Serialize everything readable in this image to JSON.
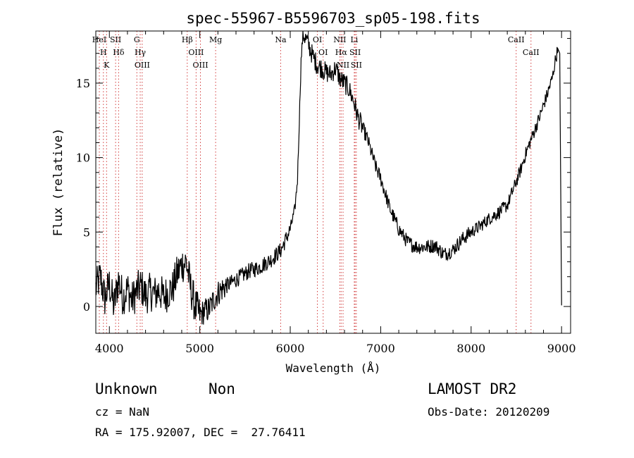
{
  "chart_data": {
    "type": "line",
    "title": "spec-55967-B5596703_sp05-198.fits",
    "xlabel": "Wavelength (Å)",
    "ylabel": "Flux (relative)",
    "xlim": [
      3850,
      9100
    ],
    "ylim": [
      -1.8,
      18.5
    ],
    "xticks": [
      4000,
      5000,
      6000,
      7000,
      8000,
      9000
    ],
    "yticks": [
      0,
      5,
      10,
      15
    ],
    "grid": false,
    "series": [
      {
        "x": [
          3850,
          3900,
          3950,
          4000,
          4050,
          4100,
          4150,
          4200,
          4250,
          4300,
          4350,
          4400,
          4450,
          4500,
          4550,
          4600,
          4650,
          4700,
          4750,
          4800,
          4850,
          4900,
          4950,
          5000,
          5050,
          5100,
          5150,
          5200,
          5250,
          5300,
          5350,
          5400,
          5450,
          5500,
          5550,
          5600,
          5650,
          5700,
          5750,
          5800,
          5850,
          5900,
          5950,
          6000,
          6050,
          6080,
          6100,
          6120,
          6140,
          6170,
          6200,
          6250,
          6300,
          6350,
          6400,
          6450,
          6500,
          6550,
          6600,
          6650,
          6700,
          6750,
          6800,
          6850,
          6900,
          6950,
          7000,
          7050,
          7100,
          7200,
          7300,
          7400,
          7500,
          7600,
          7700,
          7800,
          7900,
          8000,
          8100,
          8200,
          8300,
          8400,
          8500,
          8550,
          8600,
          8650,
          8700,
          8750,
          8800,
          8850,
          8900,
          8930,
          8960,
          8980,
          9000
        ],
        "y": [
          1.2,
          2.0,
          0.5,
          1.5,
          0.0,
          1.8,
          0.6,
          1.2,
          0.4,
          1.0,
          1.4,
          0.7,
          1.0,
          0.8,
          1.1,
          0.6,
          1.0,
          1.2,
          2.2,
          2.8,
          3.0,
          1.2,
          0.0,
          -0.6,
          -0.3,
          -0.2,
          0.4,
          0.9,
          1.2,
          1.4,
          1.6,
          1.8,
          2.0,
          2.2,
          2.4,
          2.5,
          2.6,
          2.8,
          3.0,
          3.2,
          3.5,
          3.8,
          4.5,
          5.2,
          6.5,
          8.5,
          12.5,
          16.5,
          18.3,
          18.0,
          17.6,
          16.8,
          16.2,
          16.0,
          15.7,
          15.6,
          16.0,
          15.3,
          15.0,
          14.6,
          13.8,
          12.7,
          12.0,
          11.3,
          10.3,
          9.3,
          8.6,
          7.6,
          6.6,
          5.2,
          4.3,
          4.0,
          4.0,
          4.1,
          3.5,
          3.8,
          4.5,
          5.0,
          5.4,
          5.9,
          6.3,
          6.8,
          8.4,
          9.2,
          10.2,
          11.0,
          11.8,
          12.6,
          13.5,
          14.4,
          15.4,
          16.5,
          17.3,
          17.0,
          0.1
        ]
      }
    ],
    "annotations": {
      "lines": [
        {
          "label": "H",
          "x": 3934
        },
        {
          "label": "K",
          "x": 3969
        },
        {
          "label": "HeI",
          "x": 3889
        },
        {
          "label": "Hδ",
          "x": 4102
        },
        {
          "label": "SII",
          "x": 4069
        },
        {
          "label": "G",
          "x": 4304
        },
        {
          "label": "OIII",
          "x": 4363
        },
        {
          "label": "Hγ",
          "x": 4341
        },
        {
          "label": "Hβ",
          "x": 4861
        },
        {
          "label": "OIII",
          "x": 4959
        },
        {
          "label": "OIII",
          "x": 5007
        },
        {
          "label": "Mg",
          "x": 5175
        },
        {
          "label": "Na",
          "x": 5894
        },
        {
          "label": "OI",
          "x": 6300
        },
        {
          "label": "OI",
          "x": 6364
        },
        {
          "label": "NII",
          "x": 6548
        },
        {
          "label": "Hα",
          "x": 6563
        },
        {
          "label": "NII",
          "x": 6584
        },
        {
          "label": "SII",
          "x": 6717
        },
        {
          "label": "SII",
          "x": 6731
        },
        {
          "label": "Li",
          "x": 6708
        },
        {
          "label": "CaII",
          "x": 8498
        },
        {
          "label": "CaII",
          "x": 8662
        }
      ]
    }
  },
  "info": {
    "class_label": "Unknown",
    "subclass_label": "Non",
    "cz_text": "cz = NaN",
    "radec_text": "RA = 175.92007, DEC =  27.76411",
    "survey": "LAMOST DR2",
    "obsdate_text": "Obs-Date: 20120209"
  }
}
